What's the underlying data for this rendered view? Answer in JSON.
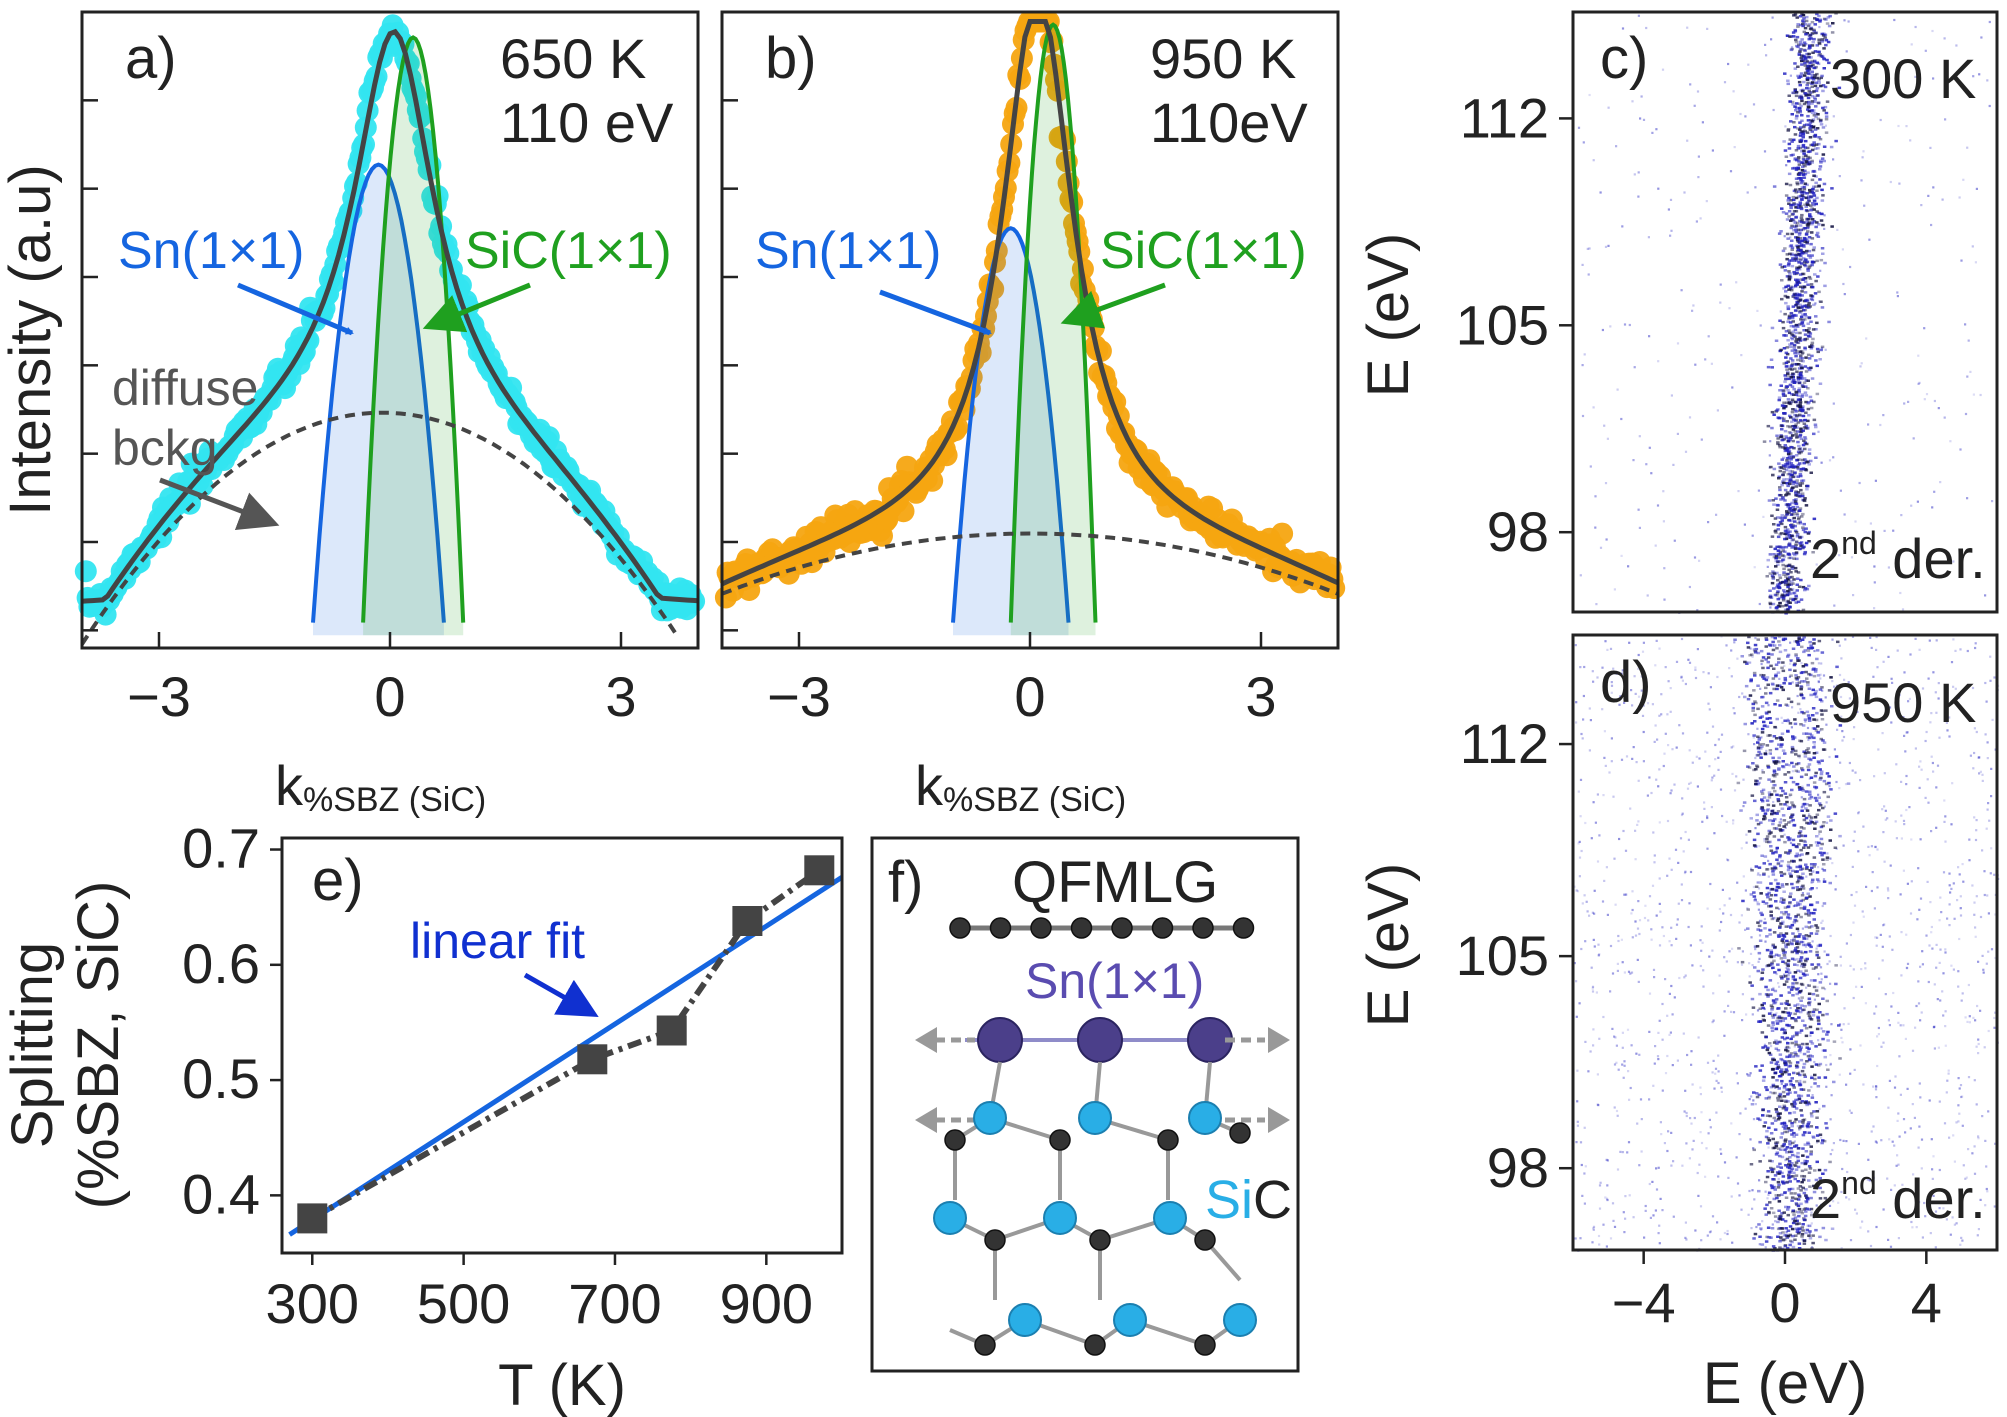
{
  "chart_data": [
    {
      "id": "a",
      "type": "line",
      "panel_label": "a)",
      "annotation_lines": [
        "650 K",
        "110 eV"
      ],
      "ylabel": "Intensity (a.u)",
      "xlabel_main": "k",
      "xlabel_sub": "%SBZ (SiC)",
      "xlim": [
        -4,
        4
      ],
      "ylim": [
        0,
        1
      ],
      "xticks": [
        "−3",
        "0",
        "3"
      ],
      "xtick_values": [
        -3,
        0,
        3
      ],
      "data_color": "#33e5f0",
      "fit": {
        "amplitude": 0.6,
        "center": 0.05,
        "width": 1.05
      },
      "components": [
        {
          "name": "Sn(1×1)",
          "center": -0.15,
          "height": 0.72,
          "halfwidth": 0.85,
          "color": "#1565e0",
          "label": "Sn(1×1)"
        },
        {
          "name": "SiC(1×1)",
          "center": 0.3,
          "height": 0.92,
          "halfwidth": 0.65,
          "color": "#1fa01f",
          "label": "SiC(1×1)"
        },
        {
          "name": "diffuse bckg",
          "center": -0.1,
          "height": 0.31,
          "halfwidth": 3.6,
          "color": "#444444"
        }
      ],
      "annotations": {
        "sn": "Sn(1×1)",
        "sic": "SiC(1×1)",
        "diffuse": "diffuse",
        "bckg": "bckg"
      }
    },
    {
      "id": "b",
      "type": "line",
      "panel_label": "b)",
      "annotation_lines": [
        "950 K",
        "110eV"
      ],
      "xlabel_main": "k",
      "xlabel_sub": "%SBZ (SiC)",
      "xlim": [
        -4,
        4
      ],
      "ylim": [
        0,
        1
      ],
      "xticks": [
        "−3",
        "0",
        "3"
      ],
      "xtick_values": [
        -3,
        0,
        3
      ],
      "data_color": "#f5a511",
      "fit": {
        "amplitude": 0.85,
        "center": 0.1,
        "width": 0.95
      },
      "components": [
        {
          "name": "Sn(1×1)",
          "center": -0.25,
          "height": 0.62,
          "halfwidth": 0.75,
          "color": "#1565e0",
          "label": "Sn(1×1)"
        },
        {
          "name": "SiC(1×1)",
          "center": 0.3,
          "height": 0.94,
          "halfwidth": 0.55,
          "color": "#1fa01f",
          "label": "SiC(1×1)"
        },
        {
          "name": "diffuse bckg",
          "center": 0.0,
          "height": 0.12,
          "halfwidth": 4.5,
          "color": "#444444"
        }
      ],
      "annotations": {
        "sn": "Sn(1×1)",
        "sic": "SiC(1×1)"
      }
    },
    {
      "id": "c",
      "type": "heatmap",
      "panel_label": "c)",
      "annotation": "300 K",
      "der_prefix": "2",
      "der_sup": "nd",
      "der_suffix": " der.",
      "ylabel": "E (eV)",
      "ylim": [
        95.3,
        115.6
      ],
      "yticks": [
        "112",
        "105",
        "98"
      ],
      "ytick_values": [
        112,
        105,
        98
      ],
      "band_centers_E": [
        0.2,
        0.45
      ],
      "band_slope_eV_per_eV": 0.03,
      "color": "#2020c0"
    },
    {
      "id": "d",
      "type": "heatmap",
      "panel_label": "d)",
      "annotation": "950 K",
      "der_prefix": "2",
      "der_sup": "nd",
      "der_suffix": " der.",
      "ylabel": "E (eV)",
      "xlabel": "E (eV)",
      "xlim": [
        -6,
        6
      ],
      "ylim": [
        95.3,
        115.6
      ],
      "xticks": [
        "−4",
        "0",
        "4"
      ],
      "xtick_values": [
        -4,
        0,
        4
      ],
      "yticks": [
        "112",
        "105",
        "98"
      ],
      "ytick_values": [
        112,
        105,
        98
      ],
      "band_centers_E": [
        -0.3,
        0.5
      ],
      "color": "#2020c0"
    },
    {
      "id": "e",
      "type": "line",
      "panel_label": "e)",
      "ylabel_line1": "Splitting",
      "ylabel_line2": "(%SBZ, SiC)",
      "xlabel": "T (K)",
      "xlim": [
        260,
        1000
      ],
      "ylim": [
        0.35,
        0.71
      ],
      "xticks": [
        "300",
        "500",
        "700",
        "900"
      ],
      "xtick_values": [
        300,
        500,
        700,
        900
      ],
      "yticks": [
        "0.7",
        "0.6",
        "0.5",
        "0.4"
      ],
      "ytick_values": [
        0.7,
        0.6,
        0.5,
        0.4
      ],
      "series": [
        {
          "name": "data",
          "x": [
            300,
            670,
            775,
            875,
            970
          ],
          "y": [
            0.38,
            0.518,
            0.543,
            0.638,
            0.682
          ],
          "color": "#444444"
        }
      ],
      "fit": {
        "name": "linear fit",
        "x": [
          270,
          1000
        ],
        "y": [
          0.366,
          0.676
        ],
        "color": "#1565e0"
      },
      "fit_label": "linear fit"
    }
  ],
  "diagram_f": {
    "panel_label": "f)",
    "title": "QFMLG",
    "sn_label": "Sn(1×1)",
    "sic_label_si": "Si",
    "sic_label_c": "C",
    "colors": {
      "sn": "#4b3f8a",
      "si": "#29aee6",
      "c": "#333333",
      "sn_text": "#5a4cb0",
      "si_text": "#29aee6"
    }
  }
}
